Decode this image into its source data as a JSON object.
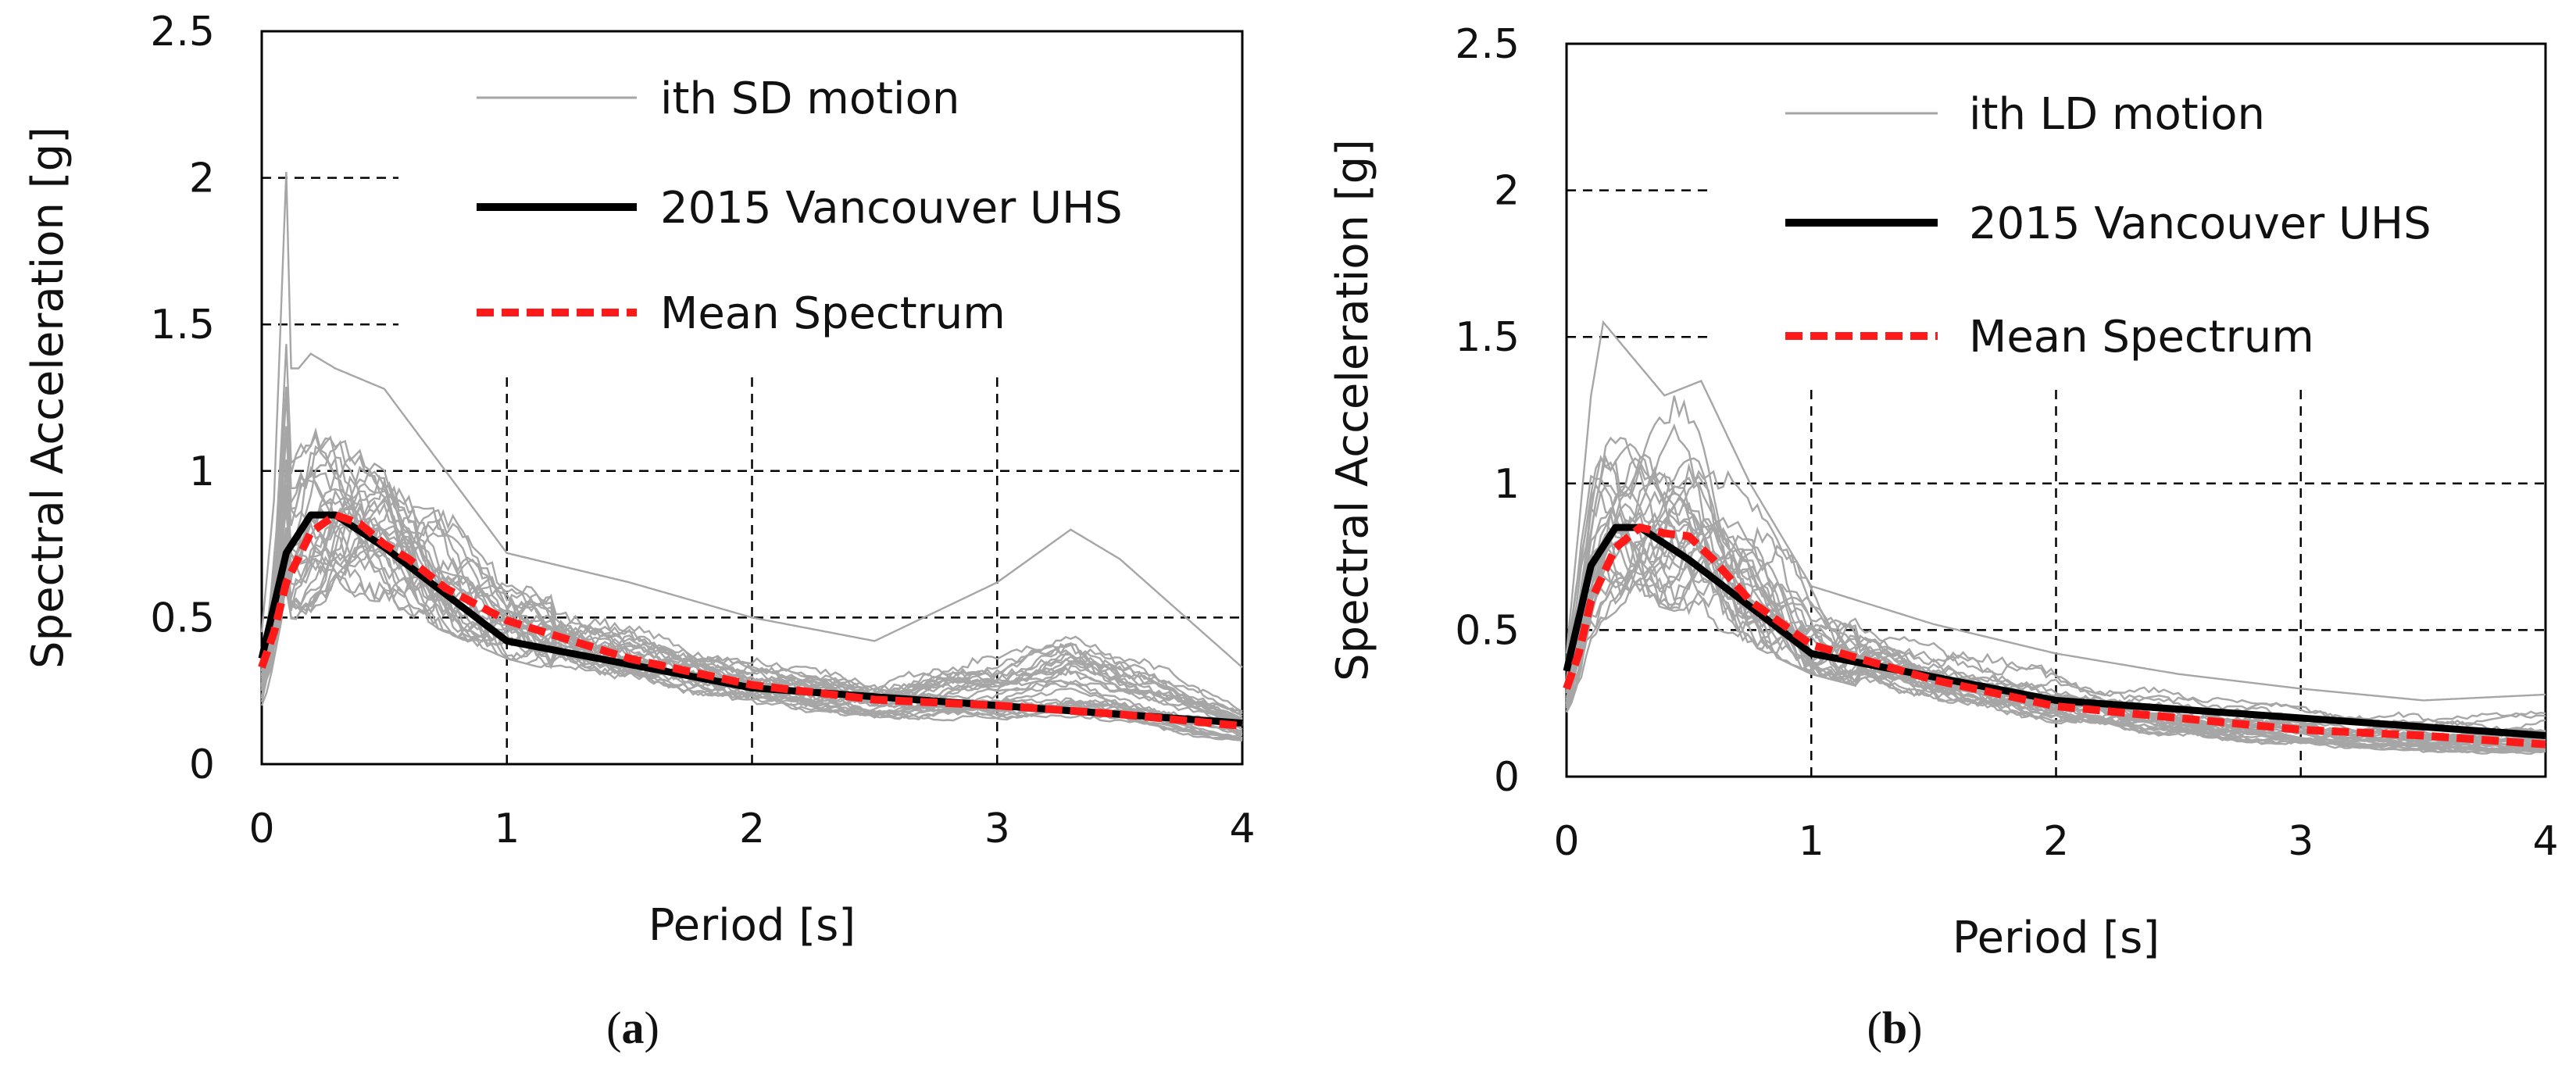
{
  "chart_data": [
    {
      "type": "line",
      "id": "a",
      "caption_letter": "a",
      "xlabel": "Period [s]",
      "ylabel": "Spectral Acceleration [g]",
      "xlim": [
        0,
        4
      ],
      "ylim": [
        0,
        2.5
      ],
      "x_ticks": [
        "0",
        "1",
        "2",
        "3",
        "4"
      ],
      "y_ticks": [
        "0",
        "0.5",
        "1",
        "1.5",
        "2",
        "2.5"
      ],
      "grid": "dashed",
      "legend": [
        {
          "label": "ith SD motion",
          "style": "thin-gray"
        },
        {
          "label": "2015 Vancouver UHS",
          "style": "thick-black"
        },
        {
          "label": "Mean Spectrum",
          "style": "dashed-red"
        }
      ],
      "series": [
        {
          "name": "2015 Vancouver UHS",
          "x": [
            0,
            0.1,
            0.2,
            0.3,
            0.5,
            1,
            2,
            4
          ],
          "y": [
            0.36,
            0.72,
            0.85,
            0.85,
            0.74,
            0.42,
            0.26,
            0.14
          ]
        },
        {
          "name": "Mean Spectrum",
          "x": [
            0,
            0.05,
            0.1,
            0.2,
            0.3,
            0.4,
            0.5,
            0.6,
            0.75,
            1,
            1.5,
            2,
            2.5,
            3,
            3.5,
            4
          ],
          "y": [
            0.33,
            0.45,
            0.62,
            0.79,
            0.85,
            0.82,
            0.75,
            0.7,
            0.6,
            0.49,
            0.36,
            0.27,
            0.22,
            0.2,
            0.17,
            0.13
          ]
        },
        {
          "name": "ith SD motion (upper envelope)",
          "x": [
            0,
            0.05,
            0.1,
            0.12,
            0.15,
            0.2,
            0.3,
            0.5,
            0.75,
            1,
            1.5,
            2,
            2.5,
            3,
            3.3,
            3.5,
            4
          ],
          "y": [
            0.45,
            0.9,
            2.02,
            1.35,
            1.35,
            1.4,
            1.35,
            1.28,
            1.0,
            0.72,
            0.62,
            0.5,
            0.42,
            0.62,
            0.8,
            0.7,
            0.33
          ]
        },
        {
          "name": "ith SD motion (lower envelope)",
          "x": [
            0,
            0.05,
            0.1,
            0.2,
            0.3,
            0.5,
            0.75,
            1,
            1.5,
            2,
            2.5,
            3,
            3.5,
            4
          ],
          "y": [
            0.2,
            0.28,
            0.4,
            0.52,
            0.58,
            0.55,
            0.45,
            0.36,
            0.25,
            0.17,
            0.12,
            0.08,
            0.05,
            0.03
          ]
        }
      ]
    },
    {
      "type": "line",
      "id": "b",
      "caption_letter": "b",
      "xlabel": "Period [s]",
      "ylabel": "Spectral Acceleration [g]",
      "xlim": [
        0,
        4
      ],
      "ylim": [
        0,
        2.5
      ],
      "x_ticks": [
        "0",
        "1",
        "2",
        "3",
        "4"
      ],
      "y_ticks": [
        "0",
        "0.5",
        "1",
        "1.5",
        "2",
        "2.5"
      ],
      "grid": "dashed",
      "legend": [
        {
          "label": "ith LD motion",
          "style": "thin-gray"
        },
        {
          "label": "2015 Vancouver UHS",
          "style": "thick-black"
        },
        {
          "label": "Mean Spectrum",
          "style": "dashed-red"
        }
      ],
      "series": [
        {
          "name": "2015 Vancouver UHS",
          "x": [
            0,
            0.1,
            0.2,
            0.3,
            0.5,
            1,
            2,
            4
          ],
          "y": [
            0.36,
            0.72,
            0.85,
            0.85,
            0.74,
            0.42,
            0.26,
            0.14
          ]
        },
        {
          "name": "Mean Spectrum",
          "x": [
            0,
            0.05,
            0.1,
            0.2,
            0.3,
            0.4,
            0.5,
            0.6,
            0.75,
            1,
            1.5,
            2,
            2.5,
            3,
            3.5,
            4
          ],
          "y": [
            0.3,
            0.42,
            0.6,
            0.78,
            0.85,
            0.83,
            0.82,
            0.74,
            0.6,
            0.45,
            0.33,
            0.24,
            0.2,
            0.16,
            0.14,
            0.11
          ]
        },
        {
          "name": "ith LD motion (upper envelope)",
          "x": [
            0,
            0.05,
            0.1,
            0.15,
            0.2,
            0.25,
            0.4,
            0.55,
            0.75,
            1,
            1.5,
            2,
            2.5,
            3,
            3.5,
            4
          ],
          "y": [
            0.42,
            0.85,
            1.3,
            1.55,
            1.5,
            1.45,
            1.3,
            1.35,
            1.0,
            0.65,
            0.52,
            0.42,
            0.35,
            0.3,
            0.26,
            0.28
          ]
        },
        {
          "name": "ith LD motion (lower envelope)",
          "x": [
            0,
            0.05,
            0.1,
            0.2,
            0.3,
            0.5,
            0.75,
            1,
            1.5,
            2,
            2.5,
            3,
            3.5,
            4
          ],
          "y": [
            0.22,
            0.3,
            0.42,
            0.55,
            0.6,
            0.55,
            0.45,
            0.35,
            0.24,
            0.16,
            0.11,
            0.08,
            0.06,
            0.05
          ]
        }
      ]
    }
  ],
  "colors": {
    "motion": "#a6a6a6",
    "uhs": "#000000",
    "mean": "#ff1a1a",
    "grid": "#000000"
  }
}
